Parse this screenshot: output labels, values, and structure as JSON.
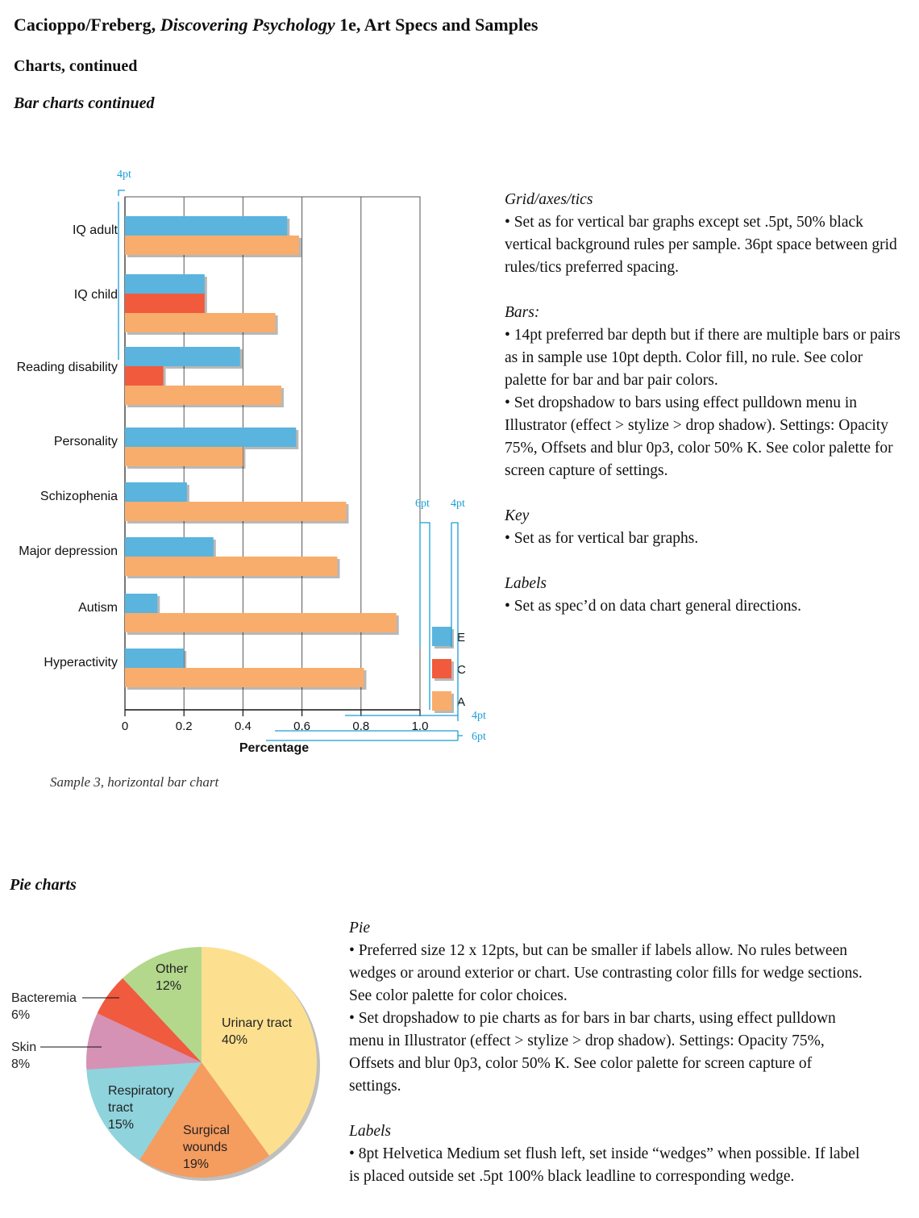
{
  "header": {
    "title_prefix": "Cacioppo/Freberg, ",
    "title_book": "Discovering Psychology",
    "title_suffix": " 1e, Art Specs and Samples",
    "section": "Charts, continued",
    "subsection": "Bar charts continued"
  },
  "bar_specs": [
    {
      "heading": "Grid/axes/tics",
      "bullets": [
        "• Set as for vertical bar graphs except set .5pt, 50% black vertical background rules per sample. 36pt space between grid rules/tics preferred spacing."
      ]
    },
    {
      "heading": "Bars:",
      "bullets": [
        "• 14pt preferred bar depth but if there are multiple bars or pairs as in sample use 10pt depth. Color fill, no rule. See color palette for bar and bar pair colors.",
        "• Set dropshadow to bars using effect pulldown menu in Illustrator (effect > stylize > drop shadow). Settings: Opacity 75%, Offsets and blur 0p3, color 50% K. See color palette for screen capture of settings."
      ]
    },
    {
      "heading": "Key",
      "bullets": [
        "• Set as for vertical bar graphs."
      ]
    },
    {
      "heading": "Labels",
      "bullets": [
        "• Set as spec’d on data chart general directions."
      ]
    }
  ],
  "bar_annotations": {
    "top_gap": "4pt",
    "key_gap": "6pt",
    "key_width": "4pt",
    "bottom_gap1": "4pt",
    "bottom_gap2": "6pt"
  },
  "sample_caption": "Sample 3, horizontal bar chart",
  "pie_section_title": "Pie charts",
  "pie_specs": [
    {
      "heading": "Pie",
      "bullets": [
        "• Preferred size 12 x 12pts, but can be smaller if labels allow. No rules between wedges or around exterior or chart. Use contrasting color fills for wedge sections. See color palette for color choices.",
        "• Set dropshadow to pie charts as for bars in bar charts, using effect pulldown menu in Illustrator (effect > stylize > drop shadow). Settings: Opacity 75%, Offsets and blur 0p3, color 50% K. See color palette for screen capture of settings."
      ]
    },
    {
      "heading": "Labels",
      "bullets": [
        "• 8pt Helvetica Medium set flush left, set inside “wedges” when possible. If label is placed outside set .5pt 100% black leadline to corresponding wedge."
      ]
    }
  ],
  "colors": {
    "E": "#5ab4dd",
    "C": "#f15a3d",
    "A": "#f8ad6c",
    "annotation": "#1a9ed6",
    "grid": "#555555"
  },
  "chart_data": [
    {
      "type": "bar",
      "orientation": "horizontal",
      "categories": [
        "IQ adult",
        "IQ child",
        "Reading disability",
        "Personality",
        "Schizophenia",
        "Major depression",
        "Autism",
        "Hyperactivity"
      ],
      "series": [
        {
          "name": "E",
          "values": [
            0.55,
            0.27,
            0.39,
            0.58,
            0.21,
            0.3,
            0.11,
            0.2
          ]
        },
        {
          "name": "C",
          "values": [
            null,
            0.27,
            0.13,
            null,
            null,
            null,
            null,
            null
          ]
        },
        {
          "name": "A",
          "values": [
            0.59,
            0.51,
            0.53,
            0.4,
            0.75,
            0.72,
            0.92,
            0.81
          ]
        }
      ],
      "xlabel": "Percentage",
      "ylabel": "",
      "xlim": [
        0,
        1.0
      ],
      "xticks": [
        "0",
        "0.2",
        "0.4",
        "0.6",
        "0.8",
        "1.0"
      ],
      "grid": "vertical",
      "legend": {
        "position": "bottom-right",
        "entries": [
          "E",
          "C",
          "A"
        ]
      }
    },
    {
      "type": "pie",
      "slices": [
        {
          "label": "Urinary tract",
          "value": 40,
          "value_label": "40%",
          "color": "#fde08f"
        },
        {
          "label": "Surgical wounds",
          "value": 19,
          "value_label": "19%",
          "color": "#f59c5f"
        },
        {
          "label": "Respiratory tract",
          "value": 15,
          "value_label": "15%",
          "color": "#8fd3dc"
        },
        {
          "label": "Skin",
          "value": 8,
          "value_label": "8%",
          "color": "#d592b4"
        },
        {
          "label": "Bacteremia",
          "value": 6,
          "value_label": "6%",
          "color": "#f05a3e"
        },
        {
          "label": "Other",
          "value": 12,
          "value_label": "12%",
          "color": "#b3d88c"
        }
      ]
    }
  ]
}
